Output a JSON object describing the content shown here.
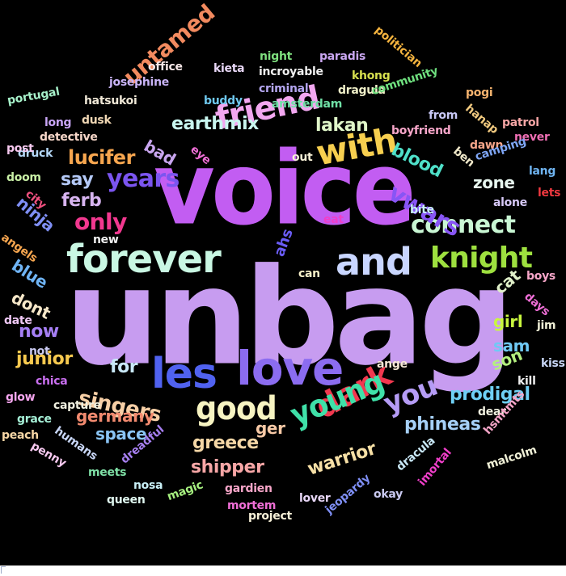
{
  "cloud": {
    "background": "#000000",
    "words": [
      {
        "text": "unbag",
        "color": "#c79cf0"
      },
      {
        "text": "voice",
        "color": "#c25df2"
      },
      {
        "text": "forever",
        "color": "#c9f7e3"
      },
      {
        "text": "love",
        "color": "#8b6cf0"
      },
      {
        "text": "and",
        "color": "#c9d6ff"
      },
      {
        "text": "les",
        "color": "#5062f0"
      },
      {
        "text": "with",
        "color": "#f7cf4f"
      },
      {
        "text": "friend",
        "color": "#f2a7f0"
      },
      {
        "text": "good",
        "color": "#f7f4c2"
      },
      {
        "text": "dark",
        "color": "#f2384f"
      },
      {
        "text": "young",
        "color": "#3fe0a8"
      },
      {
        "text": "you",
        "color": "#b59cf5"
      },
      {
        "text": "knight",
        "color": "#9ee03f"
      },
      {
        "text": "connect",
        "color": "#c9f7d4"
      },
      {
        "text": "years",
        "color": "#7b55f0"
      },
      {
        "text": "vwars",
        "color": "#8855f5"
      },
      {
        "text": "only",
        "color": "#f2388f"
      },
      {
        "text": "singers",
        "color": "#f7cfa6"
      },
      {
        "text": "untamed",
        "color": "#f28a5f"
      },
      {
        "text": "lucifer",
        "color": "#f7a64f"
      },
      {
        "text": "earthmix",
        "color": "#c9f7f0"
      },
      {
        "text": "lakan",
        "color": "#e0f7c9"
      },
      {
        "text": "blood",
        "color": "#4fe0c9"
      },
      {
        "text": "prodigal",
        "color": "#6fd0f5"
      },
      {
        "text": "shipper",
        "color": "#f7a6a6"
      },
      {
        "text": "greece",
        "color": "#f5d7a6"
      },
      {
        "text": "germany",
        "color": "#f28a6f"
      },
      {
        "text": "warrior",
        "color": "#f7e0a6"
      },
      {
        "text": "phineas",
        "color": "#a6d0f7"
      },
      {
        "text": "ninja",
        "color": "#7f8ff5"
      },
      {
        "text": "bad",
        "color": "#c9a6f0"
      },
      {
        "text": "say",
        "color": "#b4c9f7"
      },
      {
        "text": "ferb",
        "color": "#d7b4f0"
      },
      {
        "text": "space",
        "color": "#8ac4f5"
      },
      {
        "text": "for",
        "color": "#c9e8f7"
      },
      {
        "text": "ger",
        "color": "#f7c9a6"
      },
      {
        "text": "junior",
        "color": "#f7c94f"
      },
      {
        "text": "blue",
        "color": "#6fb4f5"
      },
      {
        "text": "dont",
        "color": "#f7e8c9"
      },
      {
        "text": "now",
        "color": "#a67ff5"
      },
      {
        "text": "zone",
        "color": "#e8f7f0"
      },
      {
        "text": "cat",
        "color": "#e0f0c9"
      },
      {
        "text": "girl",
        "color": "#c9f73f"
      },
      {
        "text": "sam",
        "color": "#6fc9f5"
      },
      {
        "text": "son",
        "color": "#b4f07f"
      },
      {
        "text": "ahs",
        "color": "#6a5cf5"
      },
      {
        "text": "politician",
        "color": "#f5b43f"
      },
      {
        "text": "paradis",
        "color": "#c9a6f0"
      },
      {
        "text": "night",
        "color": "#7fe07f"
      },
      {
        "text": "incroyable",
        "color": "#f0f0f0"
      },
      {
        "text": "kieta",
        "color": "#e8d7f7"
      },
      {
        "text": "office",
        "color": "#f7e8e8"
      },
      {
        "text": "josephine",
        "color": "#c9b4f7"
      },
      {
        "text": "khong",
        "color": "#d7e04f"
      },
      {
        "text": "criminal",
        "color": "#b4a6f0"
      },
      {
        "text": "dragula",
        "color": "#f0f0c9"
      },
      {
        "text": "amsterdam",
        "color": "#6fe0a6"
      },
      {
        "text": "buddy",
        "color": "#6fc9f0"
      },
      {
        "text": "hatsukoi",
        "color": "#f0e8d7"
      },
      {
        "text": "portugal",
        "color": "#a6f0c9"
      },
      {
        "text": "community",
        "color": "#6fe07f"
      },
      {
        "text": "pogi",
        "color": "#f7b46f"
      },
      {
        "text": "from",
        "color": "#c9c9f7"
      },
      {
        "text": "boyfriend",
        "color": "#f7a6c9"
      },
      {
        "text": "hanap",
        "color": "#f0c97f"
      },
      {
        "text": "patrol",
        "color": "#f7a6a6"
      },
      {
        "text": "never",
        "color": "#f06fb4"
      },
      {
        "text": "long",
        "color": "#c9a6f7"
      },
      {
        "text": "dusk",
        "color": "#f0d7b4"
      },
      {
        "text": "detective",
        "color": "#f7d7c9"
      },
      {
        "text": "druck",
        "color": "#b4d7f7"
      },
      {
        "text": "post",
        "color": "#f7c9f0"
      },
      {
        "text": "doom",
        "color": "#c9f0a6"
      },
      {
        "text": "city",
        "color": "#f0507f"
      },
      {
        "text": "angels",
        "color": "#f7a64f"
      },
      {
        "text": "eye",
        "color": "#f06fd7"
      },
      {
        "text": "out",
        "color": "#f7f0d7"
      },
      {
        "text": "ben",
        "color": "#f0e8c9"
      },
      {
        "text": "dawn",
        "color": "#f7a68a"
      },
      {
        "text": "camping",
        "color": "#7fa6f5"
      },
      {
        "text": "lang",
        "color": "#6fb4f0"
      },
      {
        "text": "alone",
        "color": "#d7c9f7"
      },
      {
        "text": "lets",
        "color": "#f0383f"
      },
      {
        "text": "bite",
        "color": "#c9f0f7"
      },
      {
        "text": "eat",
        "color": "#f03fc9"
      },
      {
        "text": "new",
        "color": "#f0f0f0"
      },
      {
        "text": "can",
        "color": "#f7f0c9"
      },
      {
        "text": "boys",
        "color": "#f7a6c9"
      },
      {
        "text": "days",
        "color": "#f06fd7"
      },
      {
        "text": "jim",
        "color": "#f0f0d7"
      },
      {
        "text": "date",
        "color": "#f0c9f7"
      },
      {
        "text": "not",
        "color": "#c9c9f0"
      },
      {
        "text": "kiss",
        "color": "#c9d7f7"
      },
      {
        "text": "kill",
        "color": "#f0f0f0"
      },
      {
        "text": "ange",
        "color": "#f7e8d7"
      },
      {
        "text": "chica",
        "color": "#c96ff0"
      },
      {
        "text": "glow",
        "color": "#f7a6f0"
      },
      {
        "text": "capture",
        "color": "#f0f0e0"
      },
      {
        "text": "grace",
        "color": "#a6f0d7"
      },
      {
        "text": "peach",
        "color": "#f7d7a6"
      },
      {
        "text": "dear",
        "color": "#f0f0e0"
      },
      {
        "text": "humans",
        "color": "#c9d7f7"
      },
      {
        "text": "hsmtmts",
        "color": "#f7a6c9"
      },
      {
        "text": "dreadful",
        "color": "#a67ff0"
      },
      {
        "text": "dracula",
        "color": "#c9e8f7"
      },
      {
        "text": "imortal",
        "color": "#f03fc9"
      },
      {
        "text": "malcolm",
        "color": "#f0f0d7"
      },
      {
        "text": "penny",
        "color": "#f7c9f0"
      },
      {
        "text": "meets",
        "color": "#7fe0a6"
      },
      {
        "text": "nosa",
        "color": "#c9f0f7"
      },
      {
        "text": "magic",
        "color": "#a6f07f"
      },
      {
        "text": "queen",
        "color": "#e0f7f0"
      },
      {
        "text": "gardien",
        "color": "#f7a6c9"
      },
      {
        "text": "mortem",
        "color": "#f06fd7"
      },
      {
        "text": "jeopardy",
        "color": "#7f8ff5"
      },
      {
        "text": "lover",
        "color": "#e8d7f7"
      },
      {
        "text": "okay",
        "color": "#c9c9f0"
      },
      {
        "text": "project",
        "color": "#f7f0d7"
      }
    ]
  }
}
